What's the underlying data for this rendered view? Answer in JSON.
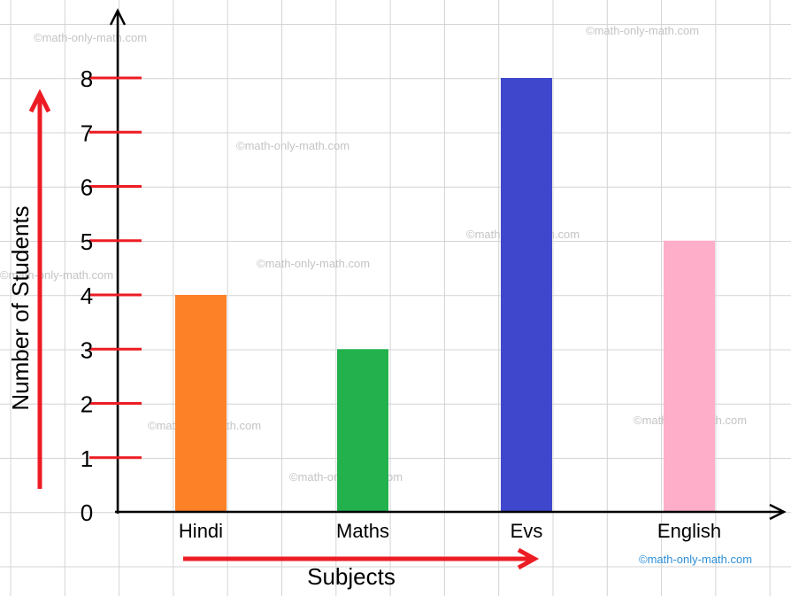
{
  "chart_data": {
    "type": "bar",
    "categories": [
      "Hindi",
      "Maths",
      "Evs",
      "English"
    ],
    "values": [
      4,
      3,
      8,
      5
    ],
    "colors": [
      "#fd8127",
      "#22b14c",
      "#3f48cc",
      "#ffaec9"
    ],
    "xlabel": "Subjects",
    "ylabel": "Number of Students",
    "ylim": [
      0,
      8
    ],
    "yticks": [
      "0",
      "1",
      "2",
      "3",
      "4",
      "5",
      "6",
      "7",
      "8"
    ],
    "grid": true,
    "tick_color": "#ed1c24",
    "arrow_color": "#ed1c24"
  },
  "watermarks": [
    "©math-only-math.com",
    "©math-only-math.com",
    "©math-only-math.com",
    "©math-only-math.com",
    "©math-only-math.com",
    "©math-only-math.com",
    "©math-only-math.com",
    "©math-only-math.com",
    "©math-only-math.com",
    "©math-only-math.com",
    "©math-only-math.com"
  ]
}
